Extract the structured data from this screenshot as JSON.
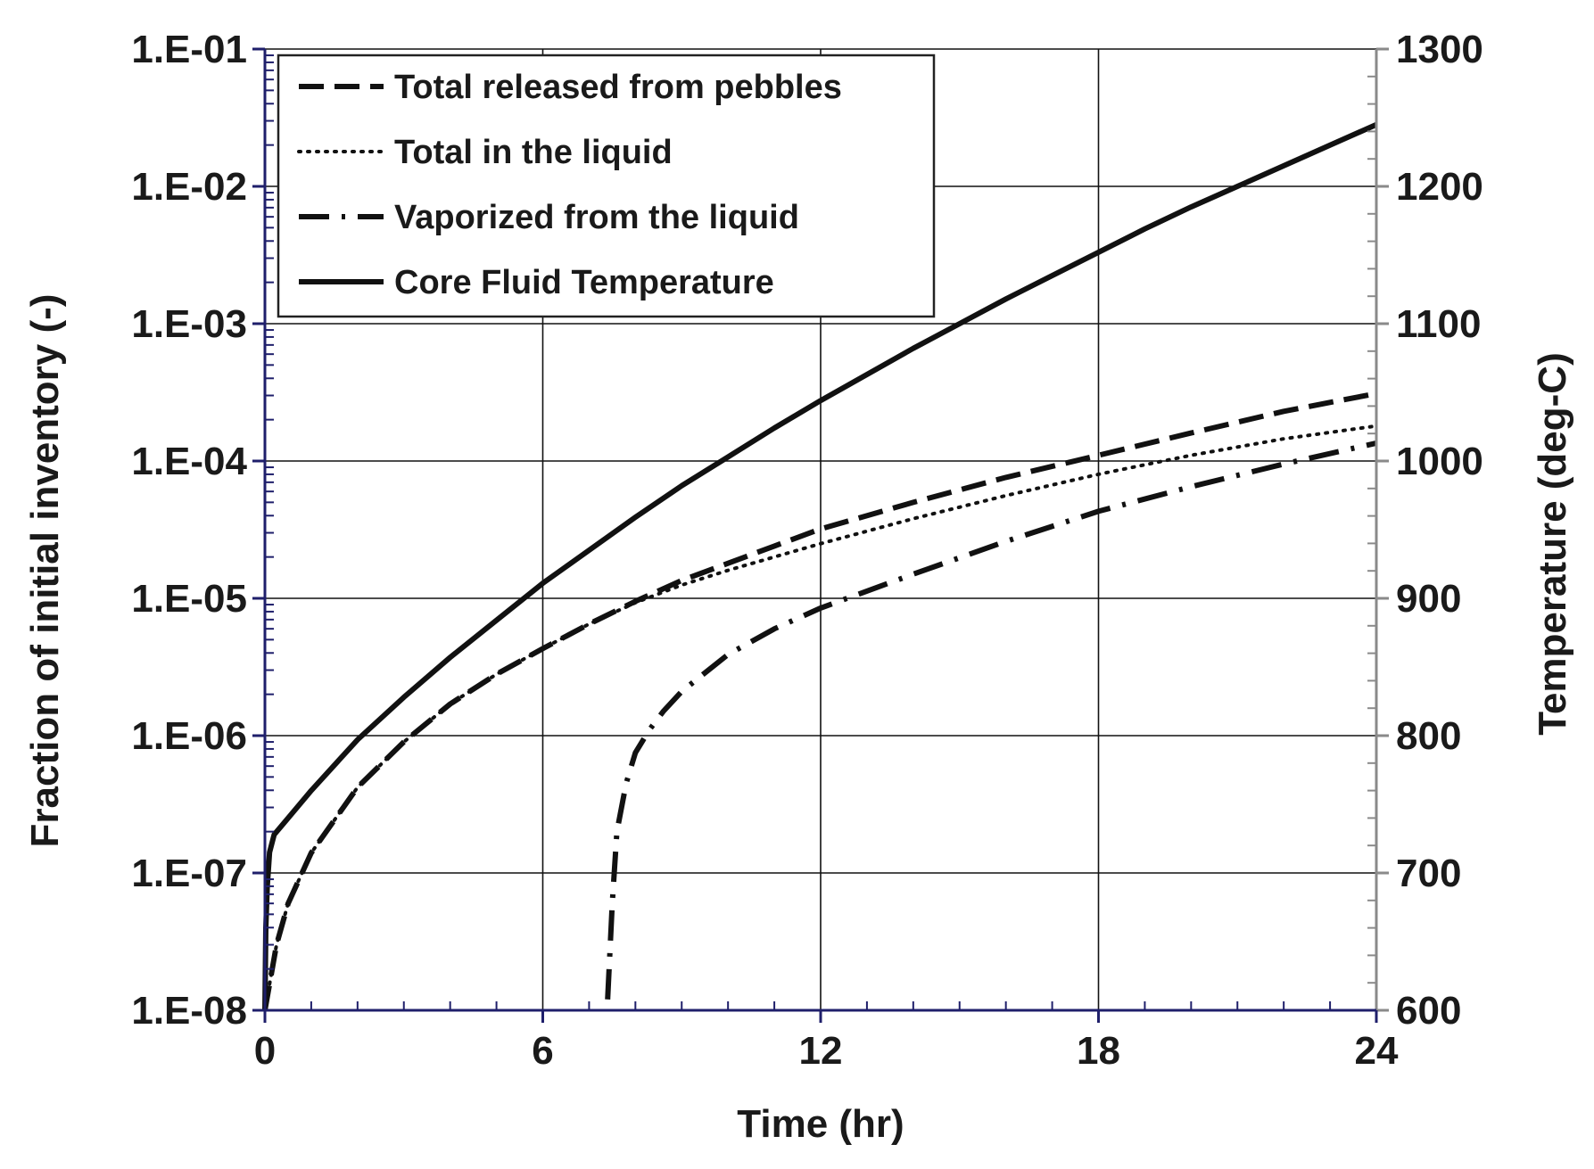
{
  "chart_data": {
    "type": "line",
    "title": "",
    "xlabel": "Time (hr)",
    "ylabel_left": "Fraction of initial inventory (-)",
    "ylabel_right": "Temperature (deg-C)",
    "xlim": [
      0,
      24
    ],
    "ylim_left": [
      1e-08,
      0.1
    ],
    "ylim_right": [
      600,
      1300
    ],
    "y_left_scale": "log",
    "grid": true,
    "legend_position": "top-left",
    "x_ticks": [
      {
        "value": 0,
        "label": "0"
      },
      {
        "value": 6,
        "label": "6"
      },
      {
        "value": 12,
        "label": "12"
      },
      {
        "value": 18,
        "label": "18"
      },
      {
        "value": 24,
        "label": "24"
      }
    ],
    "y_left_ticks": [
      {
        "value": 0.1,
        "label": "1.E-01"
      },
      {
        "value": 0.01,
        "label": "1.E-02"
      },
      {
        "value": 0.001,
        "label": "1.E-03"
      },
      {
        "value": 0.0001,
        "label": "1.E-04"
      },
      {
        "value": 1e-05,
        "label": "1.E-05"
      },
      {
        "value": 1e-06,
        "label": "1.E-06"
      },
      {
        "value": 1e-07,
        "label": "1.E-07"
      },
      {
        "value": 1e-08,
        "label": "1.E-08"
      }
    ],
    "y_right_ticks": [
      {
        "value": 1300,
        "label": "1300"
      },
      {
        "value": 1200,
        "label": "1200"
      },
      {
        "value": 1100,
        "label": "1100"
      },
      {
        "value": 1000,
        "label": "1000"
      },
      {
        "value": 900,
        "label": "900"
      },
      {
        "value": 800,
        "label": "800"
      },
      {
        "value": 700,
        "label": "700"
      },
      {
        "value": 600,
        "label": "600"
      }
    ],
    "series": [
      {
        "name": "Total released from pebbles",
        "axis": "left",
        "style": "dashed",
        "x": [
          0,
          0.25,
          0.5,
          1,
          2,
          3,
          4,
          5,
          6,
          7,
          8,
          9,
          10,
          11,
          12,
          14,
          16,
          18,
          20,
          22,
          24
        ],
        "y": [
          1e-08,
          3e-08,
          6e-08,
          1.4e-07,
          4.2e-07,
          9e-07,
          1.7e-06,
          2.8e-06,
          4.3e-06,
          6.5e-06,
          9.5e-06,
          1.35e-05,
          1.8e-05,
          2.4e-05,
          3.2e-05,
          5e-05,
          7.6e-05,
          0.00011,
          0.00016,
          0.00023,
          0.00031
        ]
      },
      {
        "name": "Total in the liquid",
        "axis": "left",
        "style": "dotted",
        "x": [
          0,
          0.25,
          0.5,
          1,
          2,
          3,
          4,
          5,
          6,
          7,
          8,
          9,
          10,
          11,
          12,
          14,
          16,
          18,
          20,
          22,
          24
        ],
        "y": [
          1e-08,
          3e-08,
          6e-08,
          1.4e-07,
          4.2e-07,
          9e-07,
          1.7e-06,
          2.8e-06,
          4.3e-06,
          6.5e-06,
          9.3e-06,
          1.25e-05,
          1.6e-05,
          2e-05,
          2.5e-05,
          3.8e-05,
          5.6e-05,
          8e-05,
          0.00011,
          0.000145,
          0.00018
        ]
      },
      {
        "name": "Vaporized from the liquid",
        "axis": "left",
        "style": "dash-dot",
        "x": [
          7.4,
          7.5,
          7.6,
          7.8,
          8,
          8.3,
          8.6,
          9,
          10,
          11,
          12,
          14,
          16,
          18,
          20,
          22,
          24
        ],
        "y": [
          1.2e-08,
          6e-08,
          2e-07,
          4.5e-07,
          7.5e-07,
          1.1e-06,
          1.5e-06,
          2.1e-06,
          3.9e-06,
          6e-06,
          8.5e-06,
          1.5e-05,
          2.6e-05,
          4.3e-05,
          6.5e-05,
          9.5e-05,
          0.000135
        ]
      },
      {
        "name": "Core Fluid Temperature",
        "axis": "right",
        "style": "solid",
        "x": [
          0,
          0.02,
          0.05,
          0.1,
          0.2,
          0.5,
          1,
          2,
          3,
          4,
          5,
          6,
          7,
          8,
          9,
          10,
          11,
          12,
          13,
          14,
          15,
          16,
          17,
          18,
          19,
          20,
          21,
          22,
          23,
          24
        ],
        "y": [
          600,
          660,
          690,
          715,
          728,
          740,
          760,
          797,
          828,
          857,
          884,
          911,
          935,
          959,
          982,
          1003,
          1024,
          1044,
          1063,
          1082,
          1100,
          1118,
          1135,
          1152,
          1169,
          1185,
          1200,
          1215,
          1230,
          1245
        ]
      }
    ]
  }
}
